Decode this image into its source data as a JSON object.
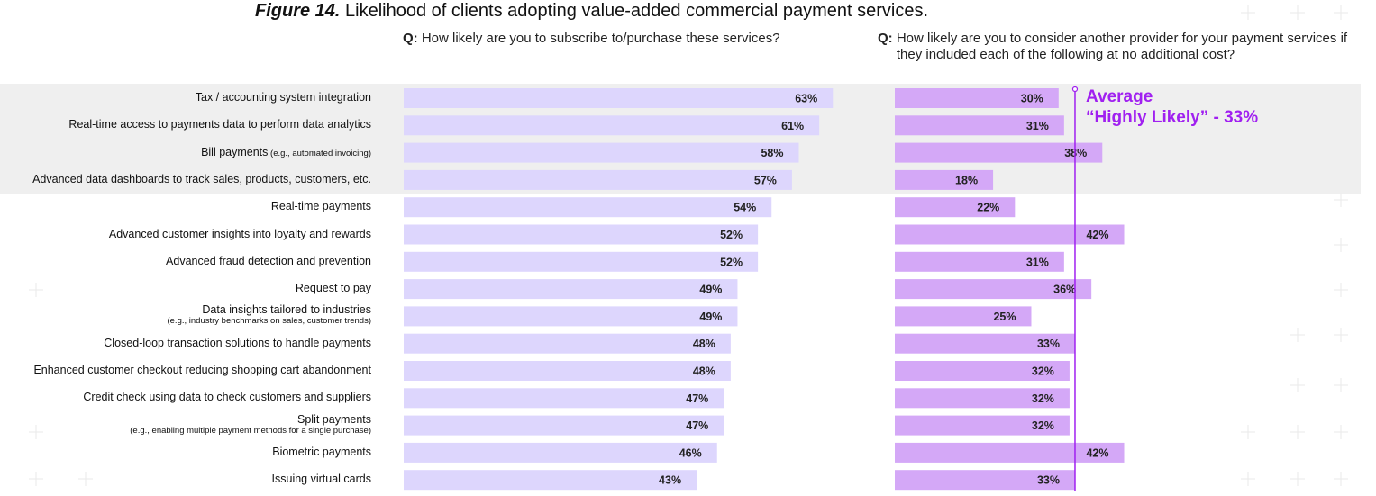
{
  "figure": {
    "prefix": "Figure 14.",
    "title": "Likelihood of clients adopting value-added commercial payment services."
  },
  "questions": {
    "left": {
      "q": "Q:",
      "text": "How likely are you to subscribe to/purchase these services?"
    },
    "right": {
      "q": "Q:",
      "text": "How likely are you to consider another provider for your payment services if they included each of the following at no additional cost?"
    }
  },
  "average": {
    "line1": "Average",
    "line2": "“Highly Likely” - 33%",
    "value": 33
  },
  "colors": {
    "left_bar": "#ddd6fd",
    "right_bar": "#d4a8f7",
    "avg_line": "#a020f0",
    "band": "#efefef"
  },
  "rows": [
    {
      "label": "Tax / accounting system integration",
      "sub": ""
    },
    {
      "label": "Real-time access to payments data to perform data analytics",
      "sub": ""
    },
    {
      "label": "Bill payments",
      "sub": "(e.g., automated invoicing)"
    },
    {
      "label": "Advanced data dashboards to track sales, products, customers, etc.",
      "sub": ""
    },
    {
      "label": "Real-time payments",
      "sub": ""
    },
    {
      "label": "Advanced customer insights into loyalty and rewards",
      "sub": ""
    },
    {
      "label": "Advanced fraud detection and prevention",
      "sub": ""
    },
    {
      "label": "Request to pay",
      "sub": ""
    },
    {
      "label": "Data insights tailored to industries",
      "sub2": "(e.g., industry benchmarks on sales, customer trends)"
    },
    {
      "label": "Closed-loop transaction solutions to handle payments",
      "sub": ""
    },
    {
      "label": "Enhanced customer checkout reducing shopping cart abandonment",
      "sub": ""
    },
    {
      "label": "Credit check using data to check customers and suppliers",
      "sub": ""
    },
    {
      "label": "Split payments",
      "sub2": "(e.g., enabling multiple payment methods for a single purchase)"
    },
    {
      "label": "Biometric payments",
      "sub": ""
    },
    {
      "label": "Issuing virtual cards",
      "sub": ""
    }
  ],
  "chart_data": {
    "type": "bar",
    "title": "Likelihood of clients adopting value-added commercial payment services.",
    "orientation": "horizontal",
    "categories": [
      "Tax / accounting system integration",
      "Real-time access to payments data to perform data analytics",
      "Bill payments (e.g., automated invoicing)",
      "Advanced data dashboards to track sales, products, customers, etc.",
      "Real-time payments",
      "Advanced customer insights into loyalty and rewards",
      "Advanced fraud detection and prevention",
      "Request to pay",
      "Data insights tailored to industries (e.g., industry benchmarks on sales, customer trends)",
      "Closed-loop transaction solutions to handle payments",
      "Enhanced customer checkout reducing shopping cart abandonment",
      "Credit check using data to check customers and suppliers",
      "Split payments (e.g., enabling multiple payment methods for a single purchase)",
      "Biometric payments",
      "Issuing virtual cards"
    ],
    "series": [
      {
        "values": [
          63,
          61,
          58,
          57,
          54,
          52,
          52,
          49,
          49,
          48,
          48,
          47,
          47,
          46,
          43
        ]
      },
      {
        "values": [
          30,
          31,
          38,
          18,
          22,
          42,
          31,
          36,
          25,
          33,
          32,
          32,
          32,
          42,
          33
        ]
      }
    ],
    "unit": "%",
    "reference_line": {
      "value": 33
    }
  }
}
